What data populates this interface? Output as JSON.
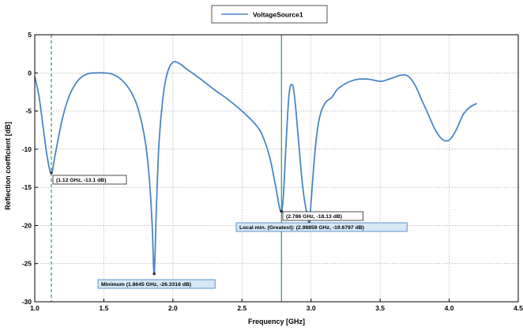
{
  "chart_data": {
    "type": "line",
    "xlabel": "Frequency [GHz]",
    "ylabel": "Reflection coefficient [dB]",
    "xlim": [
      1.0,
      4.5
    ],
    "ylim": [
      -30,
      5
    ],
    "x_ticks": [
      1.0,
      1.5,
      2.0,
      2.5,
      3.0,
      3.5,
      4.0,
      4.5
    ],
    "x_tick_labels": [
      "1.0",
      "1.5",
      "2.0",
      "2.5",
      "3.0",
      "3.5",
      "4.0",
      "4.5"
    ],
    "y_ticks": [
      5,
      0,
      -5,
      -10,
      -15,
      -20,
      -25,
      -30
    ],
    "y_tick_labels": [
      "5",
      "0",
      "-5",
      "-10",
      "-15",
      "-20",
      "-25",
      "-30"
    ],
    "grid": true,
    "legend_position": "top-center",
    "series": [
      {
        "name": "VoltageSource1",
        "color": "#4a86c8",
        "x": [
          1.0,
          1.03,
          1.06,
          1.09,
          1.12,
          1.15,
          1.2,
          1.25,
          1.3,
          1.35,
          1.4,
          1.45,
          1.5,
          1.55,
          1.6,
          1.65,
          1.7,
          1.75,
          1.8,
          1.83,
          1.85,
          1.8645,
          1.88,
          1.9,
          1.93,
          1.96,
          2.0,
          2.05,
          2.1,
          2.2,
          2.3,
          2.4,
          2.5,
          2.6,
          2.65,
          2.7,
          2.74,
          2.77,
          2.786,
          2.8,
          2.82,
          2.84,
          2.86,
          2.88,
          2.91,
          2.94,
          2.97,
          2.9886,
          3.0,
          3.03,
          3.06,
          3.1,
          3.15,
          3.2,
          3.3,
          3.4,
          3.5,
          3.55,
          3.6,
          3.65,
          3.7,
          3.75,
          3.8,
          3.85,
          3.9,
          3.95,
          4.0,
          4.05,
          4.1,
          4.15,
          4.2
        ],
        "y": [
          -0.5,
          -3,
          -7,
          -11,
          -13.1,
          -10.5,
          -6,
          -3,
          -1.3,
          -0.4,
          -0.05,
          0,
          0,
          -0.1,
          -0.5,
          -1.3,
          -2.6,
          -4.8,
          -9,
          -14,
          -20,
          -26.3,
          -18,
          -9,
          -3,
          0,
          1.4,
          1.2,
          0.5,
          -0.8,
          -2.2,
          -3.5,
          -5,
          -6.8,
          -8.3,
          -11,
          -14.5,
          -17.5,
          -18.1,
          -16,
          -9,
          -3,
          -1.5,
          -3,
          -9,
          -15,
          -18.5,
          -19.68,
          -17,
          -10,
          -6,
          -4,
          -3.2,
          -2,
          -1,
          -0.8,
          -1.1,
          -0.9,
          -0.6,
          -0.3,
          -0.4,
          -1.5,
          -3.5,
          -5.5,
          -7.5,
          -8.7,
          -8.8,
          -7.5,
          -5.5,
          -4.5,
          -4.0
        ]
      }
    ],
    "vertical_lines": [
      {
        "x": 1.12,
        "color": "#2e9e48",
        "style": "dashed"
      },
      {
        "x": 2.786,
        "color": "#2e9e48",
        "style": "solid"
      }
    ],
    "annotations": [
      {
        "text": "(1.12 GHz, -13.1 dB)",
        "x": 1.12,
        "y": -13.1,
        "highlight": false
      },
      {
        "text": "Minimum (1.8645 GHz, -26.3316 dB)",
        "x": 1.8645,
        "y": -26.33,
        "highlight": true
      },
      {
        "text": "(2.786 GHz, -18.13 dB)",
        "x": 2.786,
        "y": -18.13,
        "highlight": false
      },
      {
        "text": "Local min. (Greatest): (2.98859 GHz, -19.6797 dB)",
        "x": 2.9886,
        "y": -19.68,
        "highlight": true
      }
    ]
  }
}
